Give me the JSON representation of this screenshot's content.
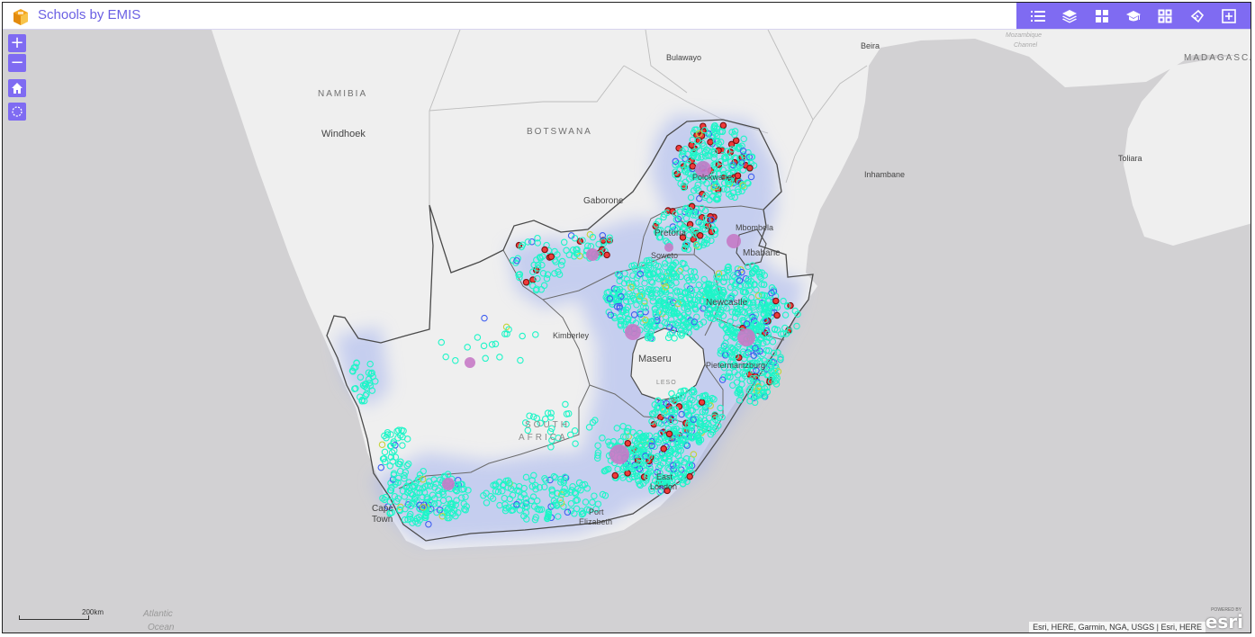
{
  "header": {
    "title": "Schools by EMIS",
    "tools": [
      "legend-icon",
      "layers-icon",
      "basemap-gallery-icon",
      "education-icon",
      "widgets-icon",
      "measure-icon",
      "add-data-icon"
    ]
  },
  "map": {
    "zoom_in": "+",
    "zoom_out": "−",
    "labels": {
      "namibia": "NAMIBIA",
      "windhoek": "Windhoek",
      "botswana": "BOTSWANA",
      "bulawayo": "Bulawayo",
      "beira": "Beira",
      "mozambique_channel_1": "Mozambique",
      "mozambique_channel_2": "Channel",
      "madagascar": "MADAGASCA",
      "inhambane": "Inhambane",
      "toliara": "Toliara",
      "gaborone": "Gaborone",
      "polokwane": "Polokwane",
      "pretoria": "Pretoria",
      "soweto": "Soweto",
      "mbombela": "Mbombela",
      "mbabane": "Mbabane",
      "newcastle": "Newcastle",
      "kimberley": "Kimberley",
      "maseru": "Maseru",
      "lesotho": "LESO",
      "pietermaritzburg": "Pietermaritzburg",
      "south_1": "SOUTH",
      "south_2": "AFRICA",
      "east_london_1": "East",
      "east_london_2": "London",
      "cape_town_1": "Cape",
      "cape_town_2": "Town",
      "port_elizabeth_1": "Port",
      "port_elizabeth_2": "Elizabeth",
      "atlantic_1": "Atlantic",
      "atlantic_2": "Ocean"
    },
    "scale": "200km",
    "attribution": "Esri, HERE, Garmin, NGA, USGS | Esri, HERE",
    "esri_powered": "POWERED BY",
    "esri_logo": "esri",
    "colors": {
      "water": "#d2d1d3",
      "land": "#efefef",
      "boundary": "#4a4a4a",
      "school_primary": "#1ef5c8",
      "school_secondary": "#3f5ff0",
      "school_combined": "#ef3a3a",
      "school_special": "#c4d33a",
      "cluster": "#c67ac6",
      "density": "#a4b4ef",
      "accent": "#7f6bf2"
    }
  }
}
